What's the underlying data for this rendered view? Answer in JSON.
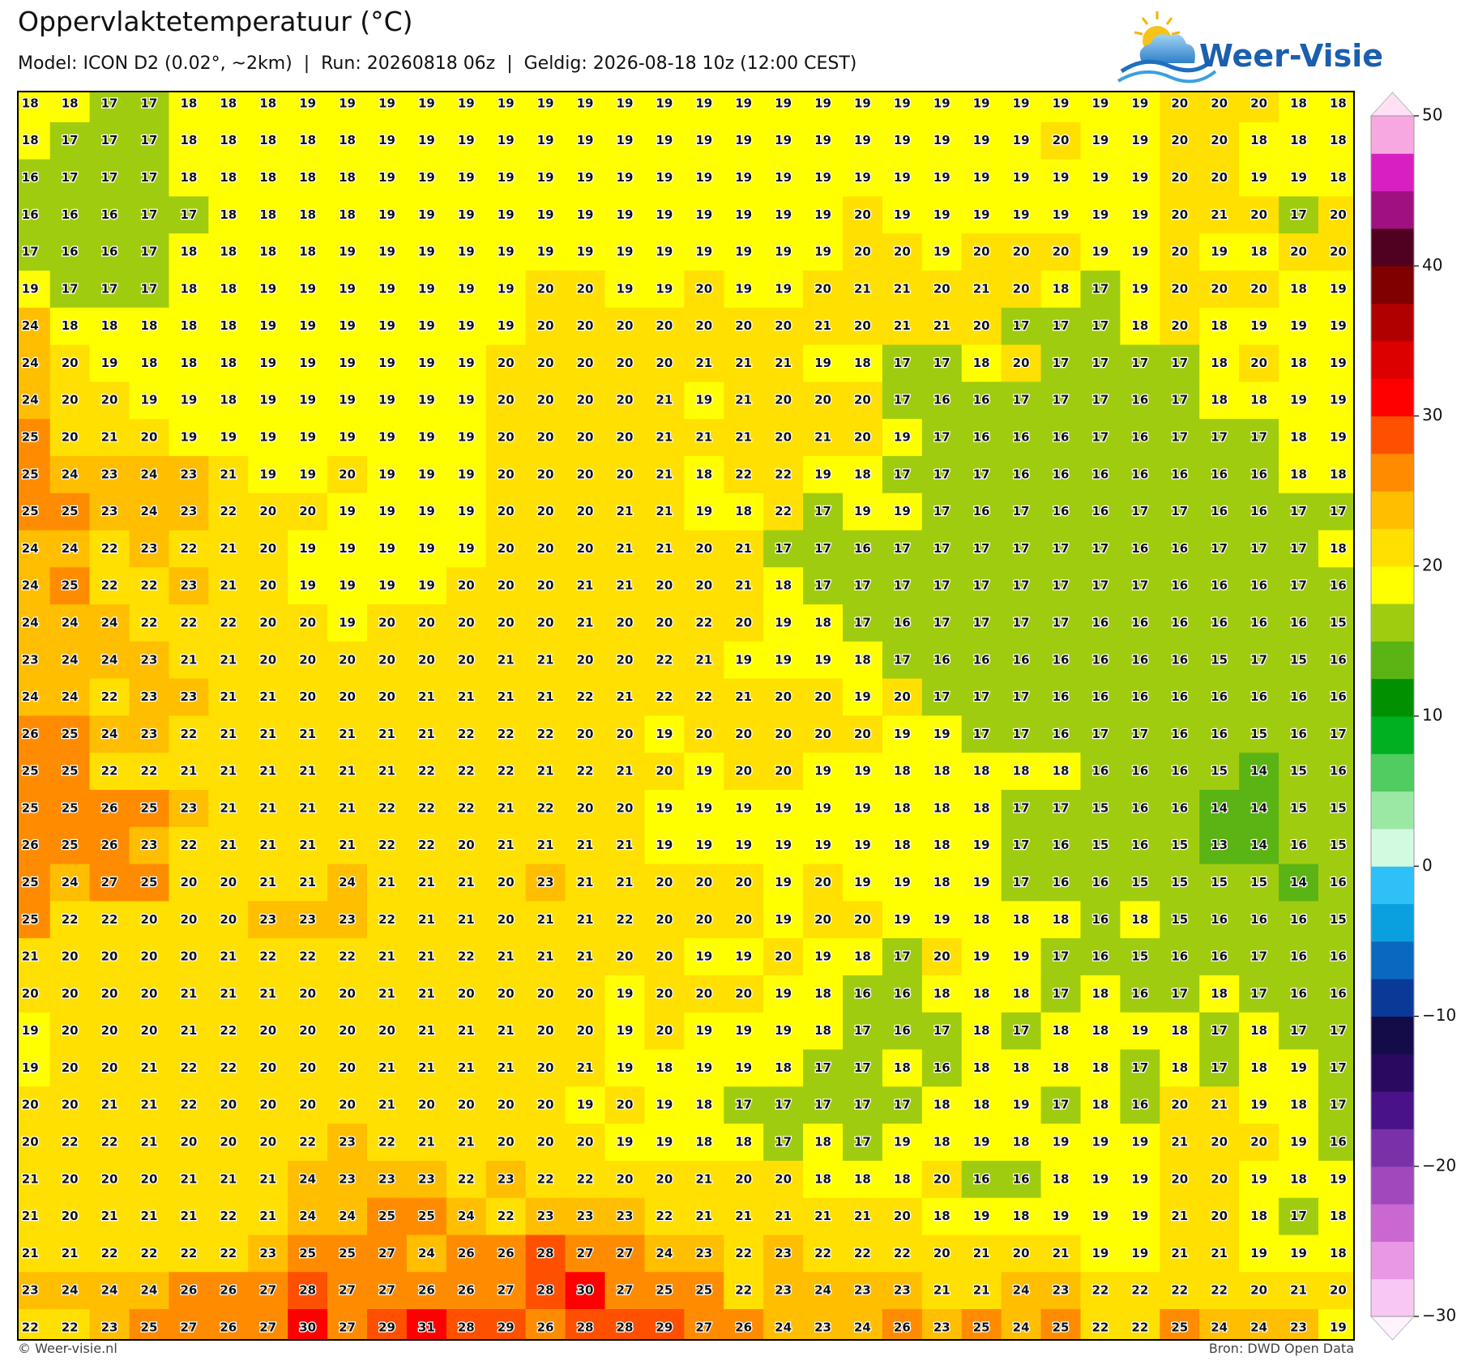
{
  "header": {
    "title": "Oppervlaktetemperatuur (°C)",
    "subtitle": "Model: ICON D2 (0.02°, ~2km)  |  Run: 20260818 06z  |  Geldig: 2026-08-18 10z (12:00 CEST)",
    "logo": "Weer-Visie"
  },
  "map": {
    "grid": [
      [
        18,
        18,
        17,
        17,
        18,
        18,
        18,
        19,
        19,
        19,
        19,
        19,
        19,
        19,
        19,
        19,
        19,
        19,
        19,
        19,
        19,
        19,
        19,
        19,
        19,
        19,
        19,
        19,
        19,
        20,
        20,
        20,
        18,
        18
      ],
      [
        18,
        17,
        17,
        17,
        18,
        18,
        18,
        18,
        18,
        19,
        19,
        19,
        19,
        19,
        19,
        19,
        19,
        19,
        19,
        19,
        19,
        19,
        19,
        19,
        19,
        19,
        20,
        19,
        19,
        20,
        20,
        18,
        18,
        18
      ],
      [
        16,
        17,
        17,
        17,
        18,
        18,
        18,
        18,
        18,
        19,
        19,
        19,
        19,
        19,
        19,
        19,
        19,
        19,
        19,
        19,
        19,
        19,
        19,
        19,
        19,
        19,
        19,
        19,
        19,
        20,
        20,
        19,
        19,
        18
      ],
      [
        16,
        16,
        16,
        17,
        17,
        18,
        18,
        18,
        18,
        19,
        19,
        19,
        19,
        19,
        19,
        19,
        19,
        19,
        19,
        19,
        19,
        20,
        19,
        19,
        19,
        19,
        19,
        19,
        19,
        20,
        21,
        20,
        17,
        20
      ],
      [
        17,
        16,
        16,
        17,
        18,
        18,
        18,
        18,
        19,
        19,
        19,
        19,
        19,
        19,
        19,
        19,
        19,
        19,
        19,
        19,
        19,
        20,
        20,
        19,
        20,
        20,
        20,
        19,
        19,
        20,
        19,
        18,
        20,
        20
      ],
      [
        19,
        17,
        17,
        17,
        18,
        18,
        19,
        19,
        19,
        19,
        19,
        19,
        19,
        20,
        20,
        19,
        19,
        20,
        19,
        19,
        20,
        21,
        21,
        20,
        21,
        20,
        18,
        17,
        19,
        20,
        20,
        20,
        18,
        19
      ],
      [
        24,
        18,
        18,
        18,
        18,
        18,
        19,
        19,
        19,
        19,
        19,
        19,
        19,
        20,
        20,
        20,
        20,
        20,
        20,
        20,
        21,
        20,
        21,
        21,
        20,
        17,
        17,
        17,
        18,
        20,
        18,
        19,
        19,
        19
      ],
      [
        24,
        20,
        19,
        18,
        18,
        18,
        19,
        19,
        19,
        19,
        19,
        19,
        20,
        20,
        20,
        20,
        20,
        21,
        21,
        21,
        19,
        18,
        17,
        17,
        18,
        20,
        17,
        17,
        17,
        17,
        18,
        20,
        18,
        19
      ],
      [
        24,
        20,
        20,
        19,
        19,
        18,
        19,
        19,
        19,
        19,
        19,
        19,
        20,
        20,
        20,
        20,
        21,
        19,
        21,
        20,
        20,
        20,
        17,
        16,
        16,
        17,
        17,
        17,
        16,
        17,
        18,
        18,
        19,
        19
      ],
      [
        25,
        20,
        21,
        20,
        19,
        19,
        19,
        19,
        19,
        19,
        19,
        19,
        20,
        20,
        20,
        20,
        21,
        21,
        21,
        20,
        21,
        20,
        19,
        17,
        16,
        16,
        16,
        17,
        16,
        17,
        17,
        17,
        18,
        19
      ],
      [
        25,
        24,
        23,
        24,
        23,
        21,
        19,
        19,
        20,
        19,
        19,
        19,
        20,
        20,
        20,
        20,
        21,
        18,
        22,
        22,
        19,
        18,
        17,
        17,
        17,
        16,
        16,
        16,
        16,
        16,
        16,
        16,
        18,
        18
      ],
      [
        25,
        25,
        23,
        24,
        23,
        22,
        20,
        20,
        19,
        19,
        19,
        19,
        20,
        20,
        20,
        21,
        21,
        19,
        18,
        22,
        17,
        19,
        19,
        17,
        16,
        17,
        16,
        16,
        17,
        17,
        16,
        16,
        17,
        17
      ],
      [
        24,
        24,
        22,
        23,
        22,
        21,
        20,
        19,
        19,
        19,
        19,
        19,
        20,
        20,
        20,
        21,
        21,
        20,
        21,
        17,
        17,
        16,
        17,
        17,
        17,
        17,
        17,
        17,
        16,
        16,
        17,
        17,
        17,
        18
      ],
      [
        24,
        25,
        22,
        22,
        23,
        21,
        20,
        19,
        19,
        19,
        19,
        20,
        20,
        20,
        21,
        21,
        20,
        20,
        21,
        18,
        17,
        17,
        17,
        17,
        17,
        17,
        17,
        17,
        17,
        16,
        16,
        16,
        17,
        16
      ],
      [
        24,
        24,
        24,
        22,
        22,
        22,
        20,
        20,
        19,
        20,
        20,
        20,
        20,
        20,
        21,
        20,
        20,
        22,
        20,
        19,
        18,
        17,
        16,
        17,
        17,
        17,
        17,
        16,
        16,
        16,
        16,
        16,
        16,
        15
      ],
      [
        23,
        24,
        24,
        23,
        21,
        21,
        20,
        20,
        20,
        20,
        20,
        20,
        21,
        21,
        20,
        20,
        22,
        21,
        19,
        19,
        19,
        18,
        17,
        16,
        16,
        16,
        16,
        16,
        16,
        16,
        15,
        17,
        15,
        16
      ],
      [
        24,
        24,
        22,
        23,
        23,
        21,
        21,
        20,
        20,
        20,
        21,
        21,
        21,
        21,
        22,
        21,
        22,
        22,
        21,
        20,
        20,
        19,
        20,
        17,
        17,
        17,
        16,
        16,
        16,
        16,
        16,
        16,
        16,
        16
      ],
      [
        26,
        25,
        24,
        23,
        22,
        21,
        21,
        21,
        21,
        21,
        21,
        22,
        22,
        22,
        20,
        20,
        19,
        20,
        20,
        20,
        20,
        20,
        19,
        19,
        17,
        17,
        16,
        17,
        17,
        16,
        16,
        15,
        16,
        17
      ],
      [
        25,
        25,
        22,
        22,
        21,
        21,
        21,
        21,
        21,
        21,
        22,
        22,
        22,
        21,
        22,
        21,
        20,
        19,
        20,
        20,
        19,
        19,
        18,
        18,
        18,
        18,
        18,
        16,
        16,
        16,
        15,
        14,
        15,
        16
      ],
      [
        25,
        25,
        26,
        25,
        23,
        21,
        21,
        21,
        21,
        22,
        22,
        22,
        21,
        22,
        20,
        20,
        19,
        19,
        19,
        19,
        19,
        19,
        18,
        18,
        18,
        17,
        17,
        15,
        16,
        16,
        14,
        14,
        15,
        15
      ],
      [
        26,
        25,
        26,
        23,
        22,
        21,
        21,
        21,
        21,
        22,
        22,
        20,
        21,
        21,
        21,
        21,
        19,
        19,
        19,
        19,
        19,
        19,
        18,
        18,
        19,
        17,
        16,
        15,
        16,
        15,
        13,
        14,
        16,
        15
      ],
      [
        25,
        24,
        27,
        25,
        20,
        20,
        21,
        21,
        24,
        21,
        21,
        21,
        20,
        23,
        21,
        21,
        20,
        20,
        20,
        19,
        20,
        19,
        19,
        18,
        19,
        17,
        16,
        16,
        15,
        15,
        15,
        15,
        14,
        16
      ],
      [
        25,
        22,
        22,
        20,
        20,
        20,
        23,
        23,
        23,
        22,
        21,
        21,
        20,
        21,
        21,
        22,
        20,
        20,
        20,
        19,
        20,
        20,
        19,
        19,
        18,
        18,
        18,
        16,
        18,
        15,
        16,
        16,
        16,
        15
      ],
      [
        21,
        20,
        20,
        20,
        20,
        21,
        22,
        22,
        22,
        21,
        21,
        22,
        21,
        21,
        21,
        20,
        20,
        19,
        19,
        20,
        19,
        18,
        17,
        20,
        19,
        19,
        17,
        16,
        15,
        16,
        16,
        17,
        16,
        16
      ],
      [
        20,
        20,
        20,
        20,
        21,
        21,
        21,
        20,
        20,
        21,
        21,
        20,
        20,
        20,
        20,
        19,
        20,
        20,
        20,
        19,
        18,
        16,
        16,
        18,
        18,
        18,
        17,
        18,
        16,
        17,
        18,
        17,
        16,
        16
      ],
      [
        19,
        20,
        20,
        20,
        21,
        22,
        20,
        20,
        20,
        20,
        21,
        21,
        21,
        20,
        20,
        19,
        20,
        19,
        19,
        19,
        18,
        17,
        16,
        17,
        18,
        17,
        18,
        18,
        19,
        18,
        17,
        18,
        17,
        17
      ],
      [
        19,
        20,
        20,
        21,
        22,
        22,
        20,
        20,
        20,
        21,
        21,
        21,
        21,
        20,
        21,
        19,
        18,
        19,
        19,
        18,
        17,
        17,
        18,
        16,
        18,
        18,
        18,
        18,
        17,
        18,
        17,
        18,
        19,
        17
      ],
      [
        20,
        20,
        21,
        21,
        22,
        20,
        20,
        20,
        20,
        21,
        20,
        20,
        20,
        20,
        19,
        20,
        19,
        18,
        17,
        17,
        17,
        17,
        17,
        18,
        18,
        19,
        17,
        18,
        16,
        20,
        21,
        19,
        18,
        17
      ],
      [
        20,
        22,
        22,
        21,
        20,
        20,
        20,
        22,
        23,
        22,
        21,
        21,
        20,
        20,
        20,
        19,
        19,
        18,
        18,
        17,
        18,
        17,
        19,
        18,
        19,
        18,
        19,
        19,
        19,
        21,
        20,
        20,
        19,
        16
      ],
      [
        21,
        20,
        20,
        20,
        21,
        21,
        21,
        24,
        23,
        23,
        23,
        22,
        23,
        22,
        22,
        20,
        20,
        21,
        20,
        20,
        18,
        18,
        18,
        20,
        16,
        16,
        18,
        19,
        19,
        20,
        20,
        19,
        18,
        19
      ],
      [
        21,
        20,
        21,
        21,
        21,
        22,
        21,
        24,
        24,
        25,
        25,
        24,
        22,
        23,
        23,
        23,
        22,
        21,
        21,
        21,
        21,
        21,
        20,
        18,
        19,
        18,
        19,
        19,
        19,
        21,
        20,
        18,
        17,
        18
      ],
      [
        21,
        21,
        22,
        22,
        22,
        22,
        23,
        25,
        25,
        27,
        24,
        26,
        26,
        28,
        27,
        27,
        24,
        23,
        22,
        23,
        22,
        22,
        22,
        20,
        21,
        20,
        21,
        19,
        19,
        21,
        21,
        19,
        19,
        18
      ],
      [
        23,
        24,
        24,
        24,
        26,
        26,
        27,
        28,
        27,
        27,
        26,
        26,
        27,
        28,
        30,
        27,
        25,
        25,
        22,
        23,
        24,
        23,
        23,
        21,
        21,
        24,
        23,
        22,
        22,
        22,
        22,
        20,
        21,
        20
      ],
      [
        22,
        22,
        23,
        25,
        27,
        26,
        27,
        30,
        27,
        29,
        31,
        28,
        29,
        26,
        28,
        28,
        29,
        27,
        26,
        24,
        23,
        24,
        26,
        23,
        25,
        24,
        25,
        22,
        22,
        25,
        24,
        24,
        23,
        19
      ]
    ]
  },
  "colorbar": {
    "lim": [
      -30,
      50
    ],
    "ticks": [
      50,
      40,
      30,
      20,
      10,
      0,
      {
        "value": -10,
        "label": "−10"
      },
      {
        "value": -20,
        "label": "−20"
      },
      {
        "value": -30,
        "label": "−30"
      }
    ],
    "colors": [
      "#f8c8f2",
      "#e898e4",
      "#c868d0",
      "#a048bc",
      "#7a30a8",
      "#4a1288",
      "#2a0a60",
      "#140c48",
      "#0a3a98",
      "#0a68c0",
      "#0aa0e0",
      "#30c0f8",
      "#d2fae0",
      "#9ae8a4",
      "#50cc60",
      "#00b020",
      "#009000",
      "#5ab414",
      "#a0cc10",
      "#ffff00",
      "#ffe000",
      "#ffbe00",
      "#ff8c00",
      "#ff5000",
      "#ff0000",
      "#dd0000",
      "#b00000",
      "#800000",
      "#500020",
      "#a01080",
      "#d820c0",
      "#f8a8e0"
    ],
    "over_color": "#ffe0f4",
    "under_color": "#fff4fd"
  },
  "footer": {
    "left": "© Weer-visie.nl",
    "right": "Bron: DWD Open Data"
  }
}
